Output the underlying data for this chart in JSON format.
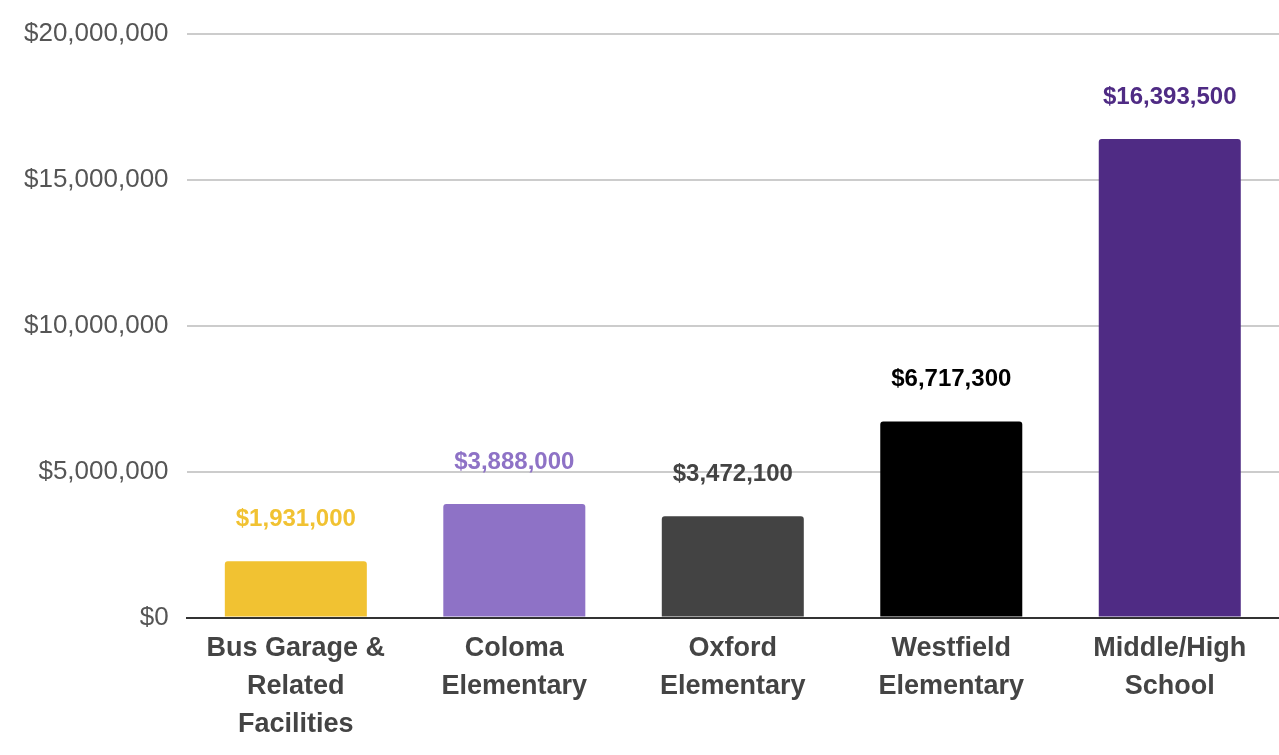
{
  "chart_data": {
    "type": "bar",
    "categories": [
      "Bus Garage & Related Facilities",
      "Coloma Elementary",
      "Oxford Elementary",
      "Westfield Elementary",
      "Middle/High School"
    ],
    "values": [
      1931000,
      3888000,
      3472100,
      6717300,
      16393500
    ],
    "colors": [
      "#f1c232",
      "#8e72c6",
      "#434343",
      "#000000",
      "#4f2b84"
    ],
    "value_labels": [
      "$1,931,000",
      "$3,888,000",
      "$3,472,100",
      "$6,717,300",
      "$16,393,500"
    ],
    "ylim": [
      0,
      20000000
    ],
    "yticks": [
      {
        "value": 0,
        "label": "$0"
      },
      {
        "value": 5000000,
        "label": "$5,000,000"
      },
      {
        "value": 10000000,
        "label": "$10,000,000"
      },
      {
        "value": 15000000,
        "label": "$15,000,000"
      },
      {
        "value": 20000000,
        "label": "$20,000,000"
      }
    ],
    "grid": "y",
    "legend": false
  }
}
